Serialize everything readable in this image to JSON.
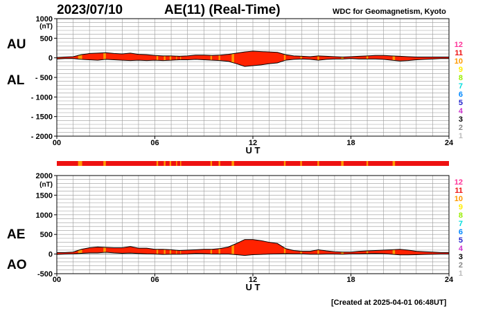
{
  "header": {
    "date": "2023/07/10",
    "title": "AE(11) (Real-Time)",
    "source": "WDC for Geomagnetism, Kyoto"
  },
  "footer": {
    "created": "[Created at 2025-04-01 06:48UT]"
  },
  "colors": {
    "fill": "#ff2200",
    "station_levels": {
      "12": "#ff3399",
      "11": "#ee1111",
      "10": "#ff9900",
      "9": "#ffee00",
      "8": "#99ee00",
      "7": "#00dddd",
      "6": "#0088ff",
      "5": "#2222cc",
      "4": "#cc33cc",
      "3": "#000000",
      "2": "#888888",
      "1": "#bbbbbb"
    }
  },
  "chart_data": [
    {
      "type": "area",
      "series_labels": [
        "AU",
        "AL"
      ],
      "yunit": "(nT)",
      "xlabel": "U T",
      "ylim": [
        -2000,
        1000
      ],
      "yticks": [
        "1000",
        "500",
        "0",
        "- 500",
        "- 1000",
        "- 1500",
        "- 2000"
      ],
      "xlim": [
        0,
        24
      ],
      "xticks": [
        "00",
        "06",
        "12",
        "18",
        "24"
      ],
      "legend_levels": [
        "12",
        "11",
        "10",
        "9",
        "8",
        "7",
        "6",
        "5",
        "4",
        "3",
        "2",
        "1"
      ],
      "x": [
        0,
        0.5,
        1,
        1.5,
        2,
        2.5,
        3,
        3.5,
        4,
        4.5,
        5,
        5.5,
        6,
        6.5,
        7,
        7.5,
        8,
        8.5,
        9,
        9.5,
        10,
        10.5,
        11,
        11.5,
        12,
        12.5,
        13,
        13.5,
        14,
        14.5,
        15,
        15.5,
        16,
        16.5,
        17,
        17.5,
        18,
        18.5,
        19,
        19.5,
        20,
        20.5,
        21,
        21.5,
        22,
        22.5,
        23,
        23.5,
        24
      ],
      "au": [
        10,
        20,
        30,
        80,
        110,
        120,
        130,
        110,
        100,
        120,
        90,
        80,
        60,
        50,
        50,
        40,
        50,
        70,
        70,
        60,
        70,
        90,
        120,
        150,
        170,
        160,
        150,
        140,
        80,
        50,
        40,
        30,
        50,
        40,
        30,
        20,
        30,
        40,
        50,
        60,
        60,
        50,
        40,
        30,
        20,
        20,
        20,
        20,
        20
      ],
      "al": [
        -30,
        -20,
        -20,
        -40,
        -50,
        -60,
        -40,
        -50,
        -60,
        -70,
        -60,
        -70,
        -60,
        -70,
        -60,
        -50,
        -50,
        -40,
        -50,
        -60,
        -70,
        -90,
        -150,
        -220,
        -200,
        -180,
        -150,
        -130,
        -60,
        -40,
        -30,
        -40,
        -60,
        -40,
        -30,
        -30,
        -20,
        -30,
        -30,
        -30,
        -40,
        -60,
        -80,
        -70,
        -50,
        -40,
        -30,
        -20,
        -20
      ]
    },
    {
      "type": "area",
      "series_labels": [
        "AE",
        "AO"
      ],
      "yunit": "(nT)",
      "xlabel": "U T",
      "ylim": [
        -500,
        2000
      ],
      "yticks": [
        "2000",
        "1500",
        "1000",
        "500",
        "0",
        "-500"
      ],
      "xlim": [
        0,
        24
      ],
      "xticks": [
        "00",
        "06",
        "12",
        "18",
        "24"
      ],
      "legend_levels": [
        "12",
        "11",
        "10",
        "9",
        "8",
        "7",
        "6",
        "5",
        "4",
        "3",
        "2",
        "1"
      ],
      "x": [
        0,
        0.5,
        1,
        1.5,
        2,
        2.5,
        3,
        3.5,
        4,
        4.5,
        5,
        5.5,
        6,
        6.5,
        7,
        7.5,
        8,
        8.5,
        9,
        9.5,
        10,
        10.5,
        11,
        11.5,
        12,
        12.5,
        13,
        13.5,
        14,
        14.5,
        15,
        15.5,
        16,
        16.5,
        17,
        17.5,
        18,
        18.5,
        19,
        19.5,
        20,
        20.5,
        21,
        21.5,
        22,
        22.5,
        23,
        23.5,
        24
      ],
      "ae": [
        40,
        40,
        50,
        120,
        160,
        180,
        170,
        160,
        160,
        190,
        150,
        150,
        120,
        120,
        110,
        90,
        100,
        110,
        120,
        120,
        140,
        180,
        270,
        370,
        370,
        340,
        300,
        270,
        140,
        90,
        70,
        70,
        110,
        80,
        60,
        50,
        50,
        70,
        80,
        90,
        100,
        110,
        120,
        100,
        70,
        60,
        50,
        40,
        40
      ],
      "ao": [
        -10,
        0,
        5,
        20,
        30,
        30,
        45,
        30,
        20,
        25,
        15,
        5,
        0,
        -10,
        -5,
        -5,
        0,
        15,
        10,
        0,
        0,
        0,
        -15,
        -35,
        -15,
        -10,
        0,
        5,
        10,
        5,
        5,
        -5,
        -5,
        0,
        0,
        -5,
        5,
        5,
        10,
        15,
        10,
        -5,
        -20,
        -20,
        -15,
        -10,
        -5,
        0,
        0
      ]
    }
  ],
  "station_bar": {
    "base_level": "11",
    "segments": [
      [
        1.3,
        1.55
      ],
      [
        2.85,
        3.0
      ],
      [
        6.1,
        6.2
      ],
      [
        6.55,
        6.65
      ],
      [
        6.9,
        7.0
      ],
      [
        7.3,
        7.35
      ],
      [
        7.55,
        7.6
      ],
      [
        9.4,
        9.5
      ],
      [
        9.9,
        10.0
      ],
      [
        10.7,
        10.85
      ],
      [
        13.9,
        14.0
      ],
      [
        14.9,
        15.0
      ],
      [
        15.95,
        16.05
      ],
      [
        17.4,
        17.55
      ],
      [
        18.95,
        19.05
      ],
      [
        20.55,
        20.7
      ]
    ]
  }
}
